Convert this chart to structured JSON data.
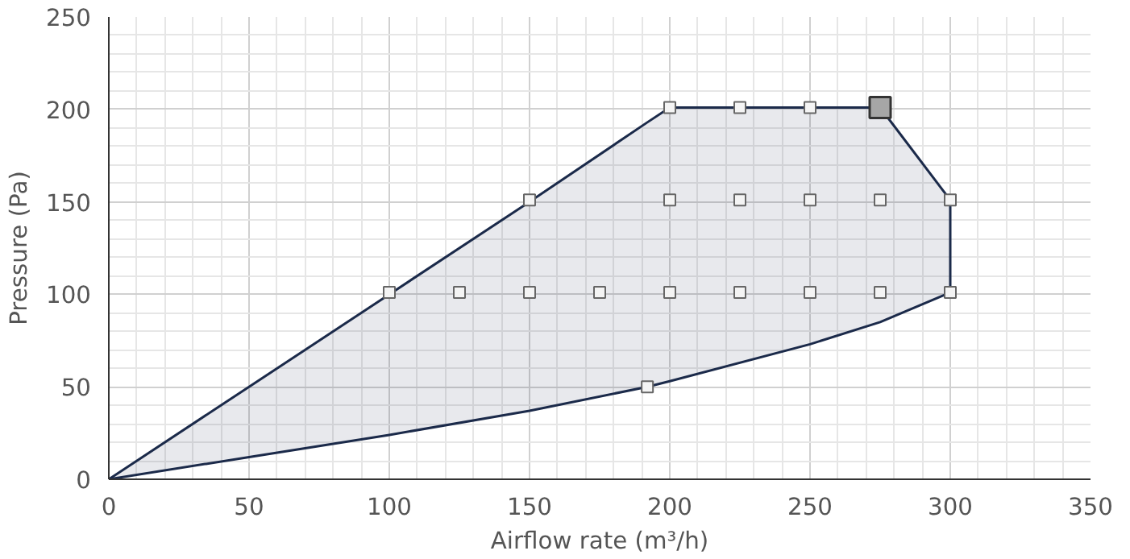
{
  "chart_data": {
    "type": "area",
    "xlabel": "Airflow rate (m³/h)",
    "ylabel": "Pressure (Pa)",
    "xlim": [
      0,
      350
    ],
    "ylim": [
      0,
      250
    ],
    "xticks": [
      0,
      50,
      100,
      150,
      200,
      250,
      300,
      350
    ],
    "yticks": [
      0,
      50,
      100,
      150,
      200,
      250
    ],
    "grid": true,
    "series": [
      {
        "color": "#1b2a4a",
        "x": [
          0,
          50,
          100,
          150,
          192,
          200,
          250,
          275,
          300,
          300
        ],
        "values": [
          0,
          50,
          100,
          150,
          193,
          201,
          201,
          201,
          151,
          101
        ]
      },
      {
        "type": "line",
        "color": "#1b2a4a",
        "x": [
          0,
          50,
          100,
          150,
          192,
          200,
          250,
          275,
          300
        ],
        "values": [
          0,
          12,
          24,
          37,
          50,
          53,
          73,
          85,
          101
        ]
      },
      {
        "type": "scatter",
        "marker": "square",
        "color": "#666666",
        "x": [
          100,
          125,
          150,
          175,
          200,
          225,
          250,
          275,
          300,
          150,
          200,
          225,
          250,
          275,
          300,
          200,
          225,
          250,
          192
        ],
        "values": [
          101,
          101,
          101,
          101,
          101,
          101,
          101,
          101,
          101,
          151,
          151,
          151,
          151,
          151,
          151,
          201,
          201,
          201,
          50
        ]
      },
      {
        "type": "scatter",
        "marker": "square",
        "color": "#a6a6a6",
        "x": [
          275
        ],
        "values": [
          201
        ]
      }
    ]
  }
}
